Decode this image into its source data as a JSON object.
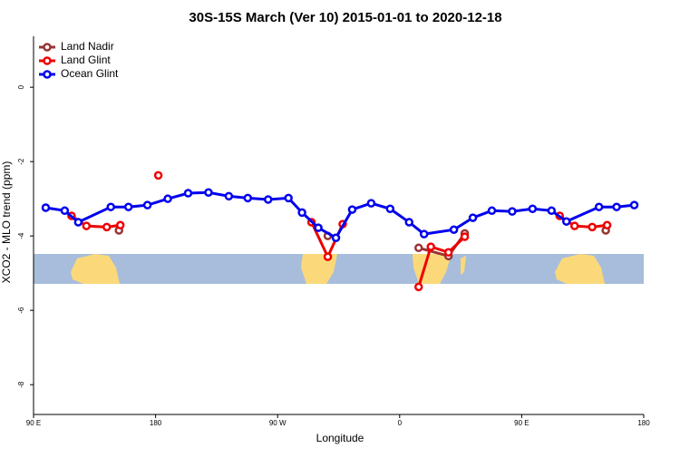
{
  "chart_data": {
    "type": "line",
    "title": "30S-15S March (Ver 10)   2015-01-01 to 2020-12-18",
    "xlabel": "Longitude",
    "ylabel": "XCO2 - MLO trend (ppm)",
    "xlim": [
      90,
      540
    ],
    "ylim": [
      -8.8,
      1.37
    ],
    "xticks": [
      {
        "value": 90,
        "label": "90 E"
      },
      {
        "value": 180,
        "label": "180"
      },
      {
        "value": 270,
        "label": "90 W"
      },
      {
        "value": 360,
        "label": "0"
      },
      {
        "value": 450,
        "label": "90 E"
      },
      {
        "value": 540,
        "label": "180"
      }
    ],
    "yticks": [
      0,
      -2,
      -4,
      -6,
      -8
    ],
    "legend": "top-left",
    "series": [
      {
        "name": "Land Nadir",
        "color": "#993333",
        "x": [
          153,
          null,
          307,
          null,
          374,
          396,
          408,
          null,
          512
        ],
        "values": [
          -3.85,
          null,
          -4.0,
          null,
          -4.32,
          -4.54,
          -3.93,
          null,
          -3.85
        ]
      },
      {
        "name": "Land Glint",
        "color": "#ee0000",
        "x": [
          118,
          129,
          144,
          154,
          null,
          182,
          null,
          295,
          307,
          318,
          null,
          374,
          383,
          396,
          408,
          null,
          478,
          489,
          502,
          513
        ],
        "values": [
          -3.46,
          -3.73,
          -3.76,
          -3.71,
          null,
          -2.37,
          null,
          -3.63,
          -4.56,
          -3.68,
          null,
          -5.37,
          -4.29,
          -4.44,
          -4.02,
          null,
          -3.46,
          -3.73,
          -3.76,
          -3.71
        ]
      },
      {
        "name": "Ocean Glint",
        "color": "#0000ee",
        "x": [
          99,
          113,
          123,
          147,
          160,
          174,
          189,
          204,
          219,
          234,
          248,
          263,
          278,
          288,
          300,
          313,
          325,
          339,
          353,
          367,
          378,
          400,
          414,
          428,
          443,
          458,
          472,
          483,
          507,
          520,
          533
        ],
        "values": [
          -3.24,
          -3.32,
          -3.63,
          -3.22,
          -3.22,
          -3.17,
          -3.0,
          -2.85,
          -2.83,
          -2.93,
          -2.98,
          -3.02,
          -2.98,
          -3.37,
          -3.78,
          -4.05,
          -3.29,
          -3.12,
          -3.27,
          -3.63,
          -3.95,
          -3.83,
          -3.51,
          -3.32,
          -3.34,
          -3.27,
          -3.32,
          -3.61,
          -3.22,
          -3.22,
          -3.17
        ]
      }
    ]
  }
}
